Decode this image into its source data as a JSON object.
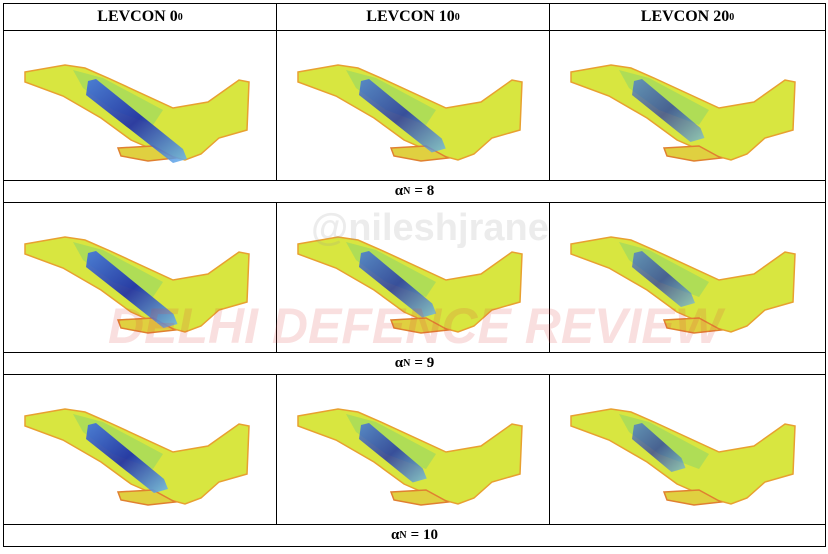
{
  "table": {
    "headers": [
      {
        "text": "LEVCON 0",
        "sup": "0"
      },
      {
        "text": "LEVCON 10",
        "sup": "0"
      },
      {
        "text": "LEVCON 20",
        "sup": "0"
      }
    ],
    "rows": [
      {
        "caption": {
          "symbol": "α",
          "sup": "N",
          "rest": "= 8"
        }
      },
      {
        "caption": {
          "symbol": "α",
          "sup": "N",
          "rest": "= 9"
        }
      },
      {
        "caption": {
          "symbol": "α",
          "sup": "N",
          "rest": "= 10"
        }
      }
    ]
  },
  "watermarks": [
    "@nileshjrane",
    "DELHI DEFENCE REVIEW"
  ]
}
